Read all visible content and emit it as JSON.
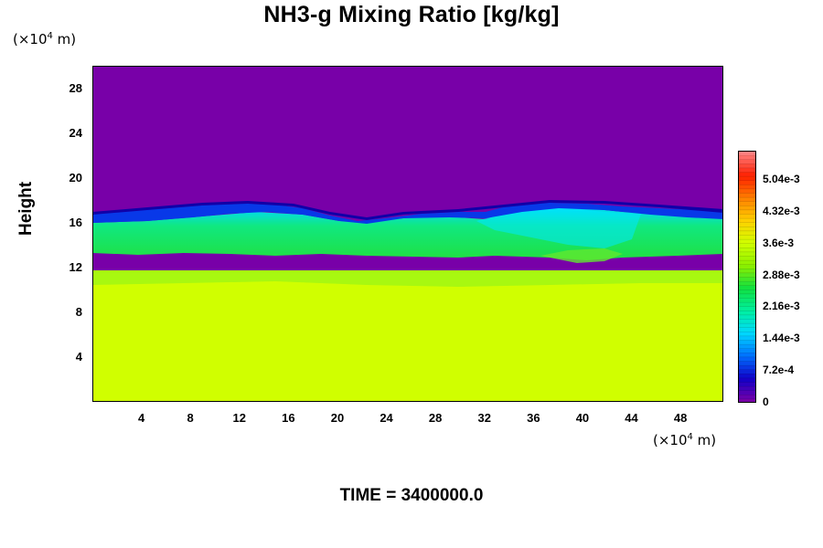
{
  "chart_data": {
    "type": "heatmap",
    "title": "NH3-g Mixing Ratio [kg/kg]",
    "xlabel": "",
    "x_unit_label": {
      "pre": "(×10",
      "exp": "4",
      "post": " m)"
    },
    "ylabel": "Height",
    "y_unit_label": {
      "pre": "(×10",
      "exp": "4",
      "post": " m)"
    },
    "xlim": [
      0,
      51.5
    ],
    "ylim": [
      0,
      30
    ],
    "x_ticks": [
      "4",
      "8",
      "12",
      "16",
      "20",
      "24",
      "28",
      "32",
      "36",
      "40",
      "44",
      "48"
    ],
    "y_ticks": [
      "4",
      "8",
      "12",
      "16",
      "20",
      "24",
      "28"
    ],
    "colorbar": {
      "range": [
        0,
        0.0057
      ],
      "tick_labels": [
        "0",
        "7.2e-4",
        "1.44e-3",
        "2.16e-3",
        "2.88e-3",
        "3.6e-3",
        "4.32e-3",
        "5.04e-3"
      ],
      "colors": [
        "#7800a8",
        "#1000c8",
        "#0070ff",
        "#00d8ff",
        "#00f0a0",
        "#10e040",
        "#8cf000",
        "#d0ff00",
        "#ffd000",
        "#ff8000",
        "#ff2000",
        "#ff8080"
      ]
    },
    "field_regions": [
      {
        "height_range": [
          0,
          10
        ],
        "value": 0.0039,
        "color": "#d0ff00"
      },
      {
        "height_range": [
          10,
          12.5
        ],
        "value": 0.0033,
        "color": "#a8f810"
      },
      {
        "height_range": [
          12.5,
          15.5
        ],
        "value": 0.0026,
        "color": "#30e850"
      },
      {
        "height_range": [
          15.5,
          16.5
        ],
        "value": 0.0008,
        "color": "#0838e8"
      },
      {
        "height_range": [
          16.5,
          30
        ],
        "value": 0.0,
        "color": "#7800a8"
      }
    ]
  },
  "footer": {
    "time_label": "TIME = 3400000.0"
  }
}
